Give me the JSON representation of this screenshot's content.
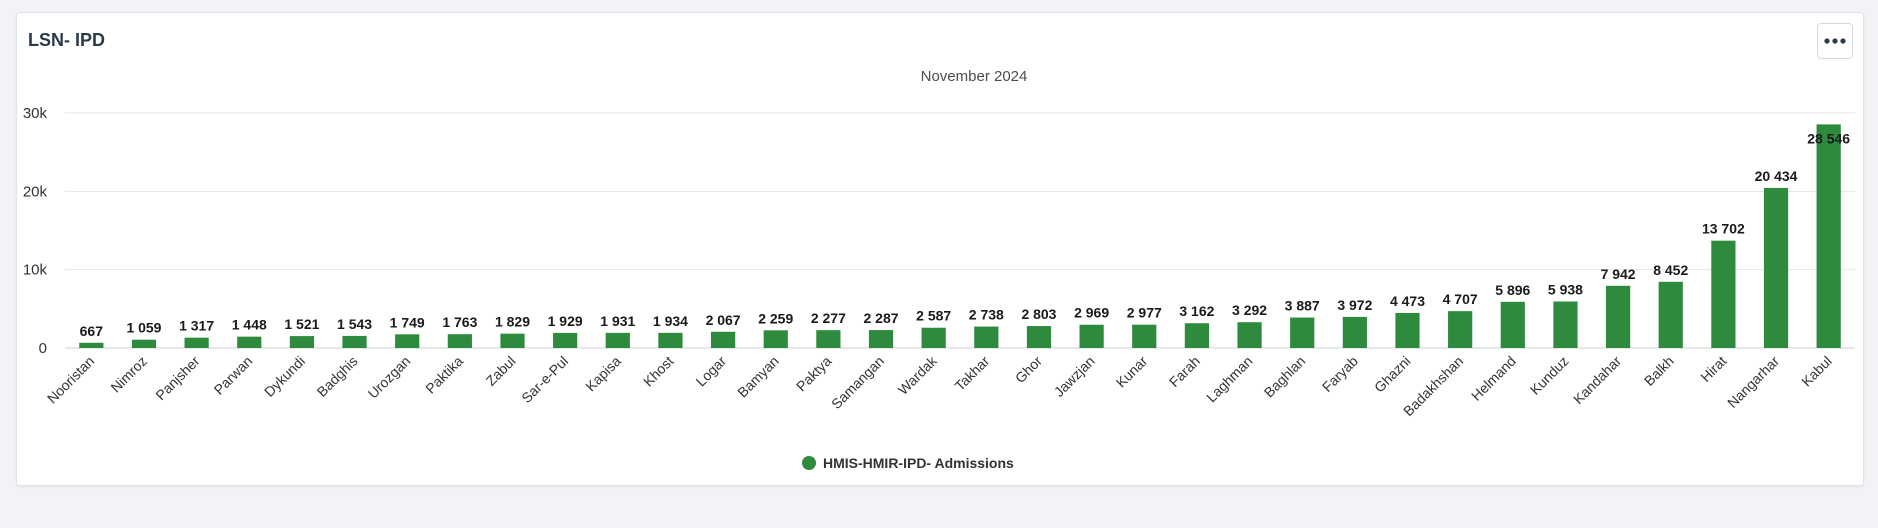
{
  "card": {
    "title": "LSN- IPD",
    "menu_icon": "more-horizontal-icon"
  },
  "chart_data": {
    "type": "bar",
    "subtitle": "November 2024",
    "categories": [
      "Nooristan",
      "Nimroz",
      "Panjsher",
      "Parwan",
      "Dykundi",
      "Badghis",
      "Urozgan",
      "Paktika",
      "Zabul",
      "Sar-e-Pul",
      "Kapisa",
      "Khost",
      "Logar",
      "Bamyan",
      "Paktya",
      "Samangan",
      "Wardak",
      "Takhar",
      "Ghor",
      "Jawzjan",
      "Kunar",
      "Farah",
      "Laghman",
      "Baghlan",
      "Faryab",
      "Ghazni",
      "Badakhshan",
      "Helmand",
      "Kunduz",
      "Kandahar",
      "Balkh",
      "Hirat",
      "Nangarhar",
      "Kabul"
    ],
    "series": [
      {
        "name": "HMIS-HMIR-IPD- Admissions",
        "color": "#2e8b3e",
        "values": [
          667,
          1059,
          1317,
          1448,
          1521,
          1543,
          1749,
          1763,
          1829,
          1929,
          1931,
          1934,
          2067,
          2259,
          2277,
          2287,
          2587,
          2738,
          2803,
          2969,
          2977,
          3162,
          3292,
          3887,
          3972,
          4473,
          4707,
          5896,
          5938,
          7942,
          8452,
          13702,
          20434,
          28546
        ]
      }
    ],
    "data_labels": [
      "667",
      "1 059",
      "1 317",
      "1 448",
      "1 521",
      "1 543",
      "1 749",
      "1 763",
      "1 829",
      "1 929",
      "1 931",
      "1 934",
      "2 067",
      "2 259",
      "2 277",
      "2 287",
      "2 587",
      "2 738",
      "2 803",
      "2 969",
      "2 977",
      "3 162",
      "3 292",
      "3 887",
      "3 972",
      "4 473",
      "4 707",
      "5 896",
      "5 938",
      "7 942",
      "8 452",
      "13 702",
      "20 434",
      "28 546"
    ],
    "ylim": [
      0,
      30000
    ],
    "yticks": [
      0,
      10000,
      20000,
      30000
    ],
    "ytick_labels": [
      "0",
      "10k",
      "20k",
      "30k"
    ],
    "grid": true,
    "legend_position": "bottom-center"
  }
}
